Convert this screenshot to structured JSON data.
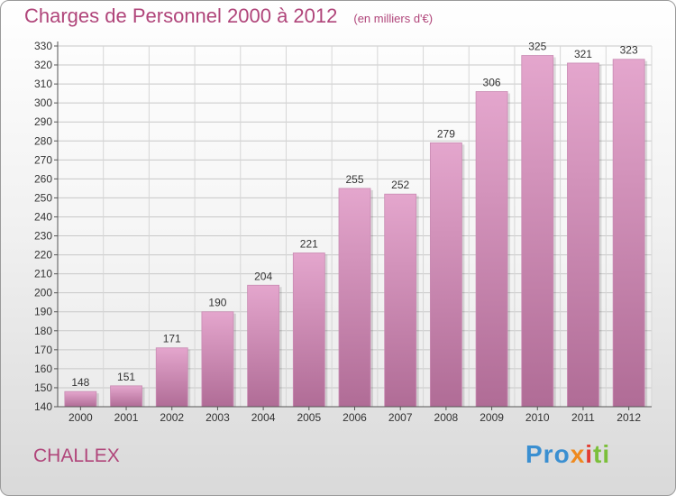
{
  "header": {
    "title": "Charges de Personnel 2000 à 2012",
    "subtitle": "(en milliers d'€)"
  },
  "footer": {
    "commune": "CHALLEX",
    "logo": [
      "Pro",
      "x",
      "i",
      "ti"
    ]
  },
  "colors": {
    "title": "#b0457a",
    "bar_top": "#e4a6cd",
    "bar_bottom": "#b06c96"
  },
  "chart_data": {
    "type": "bar",
    "title": "Charges de Personnel 2000 à 2012",
    "subtitle": "(en milliers d'€)",
    "categories": [
      "2000",
      "2001",
      "2002",
      "2003",
      "2004",
      "2005",
      "2006",
      "2007",
      "2008",
      "2009",
      "2010",
      "2011",
      "2012"
    ],
    "values": [
      148,
      151,
      171,
      190,
      204,
      221,
      255,
      252,
      279,
      306,
      325,
      321,
      323
    ],
    "ylim": [
      140,
      330
    ],
    "yticks": [
      140,
      150,
      160,
      170,
      180,
      190,
      200,
      210,
      220,
      230,
      240,
      250,
      260,
      270,
      280,
      290,
      300,
      310,
      320,
      330
    ],
    "grid": true,
    "legend": "none"
  }
}
